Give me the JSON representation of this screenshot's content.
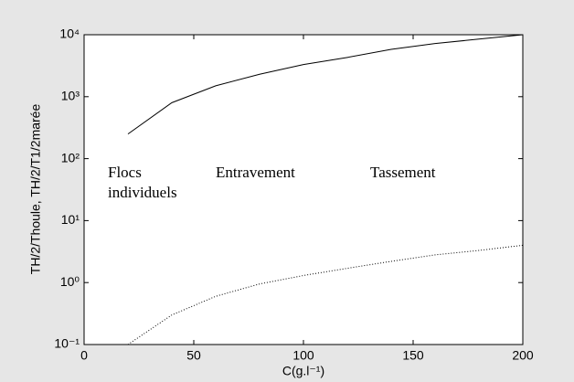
{
  "chart_data": {
    "type": "line",
    "xlabel": "C(g.l⁻¹)",
    "ylabel": "TH/2/Thoule, TH/2/T1/2marée",
    "annotations": [
      [
        "Flocs",
        "individuels"
      ],
      [
        "Entravement"
      ],
      [
        "Tassement"
      ]
    ],
    "x": [
      20,
      40,
      60,
      80,
      100,
      120,
      140,
      160,
      180,
      200
    ],
    "series": [
      {
        "color": "#000000",
        "dash": "solid",
        "values": [
          250,
          800,
          1500,
          2300,
          3300,
          4300,
          5800,
          7200,
          8500,
          10000
        ]
      },
      {
        "color": "#000000",
        "dash": "dotted",
        "values": [
          0.1,
          0.3,
          0.6,
          0.95,
          1.3,
          1.7,
          2.2,
          2.8,
          3.3,
          4
        ]
      }
    ],
    "xlim": [
      0,
      200
    ],
    "xticks": [
      0,
      50,
      100,
      150,
      200
    ],
    "ylim": [
      0.1,
      10000
    ],
    "ylog": true,
    "yticks": [
      {
        "value": 0.1,
        "label": "10⁻¹"
      },
      {
        "value": 1,
        "label": "10⁰"
      },
      {
        "value": 10,
        "label": "10¹"
      },
      {
        "value": 100,
        "label": "10²"
      },
      {
        "value": 1000,
        "label": "10³"
      },
      {
        "value": 10000,
        "label": "10⁴"
      }
    ],
    "grid": false
  }
}
